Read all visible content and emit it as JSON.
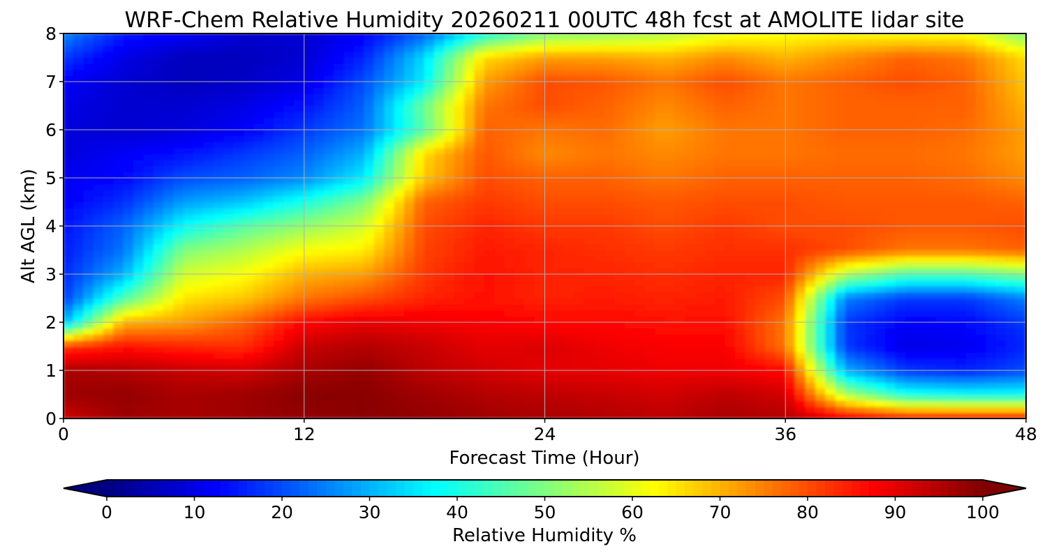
{
  "chart_data": {
    "type": "heatmap",
    "title": "WRF-Chem Relative Humidity 20260211 00UTC 48h fcst at AMOLITE lidar site",
    "xlabel": "Forecast Time (Hour)",
    "ylabel": "Alt AGL (km)",
    "xlim": [
      0,
      48
    ],
    "ylim": [
      0,
      8
    ],
    "xticks": [
      "0",
      "12",
      "24",
      "36",
      "48"
    ],
    "xtick_values": [
      0,
      12,
      24,
      36,
      48
    ],
    "yticks": [
      "0",
      "1",
      "2",
      "3",
      "4",
      "5",
      "6",
      "7",
      "8"
    ],
    "ytick_values": [
      0,
      1,
      2,
      3,
      4,
      5,
      6,
      7,
      8
    ],
    "grid": true,
    "colormap": "jet",
    "colorbar": {
      "label": "Relative Humidity %",
      "orientation": "horizontal",
      "location": "bottom",
      "range": [
        0,
        100
      ],
      "extend": "both",
      "ticks": [
        "0",
        "10",
        "20",
        "30",
        "40",
        "50",
        "60",
        "70",
        "80",
        "90",
        "100"
      ],
      "tick_values": [
        0,
        10,
        20,
        30,
        40,
        50,
        60,
        70,
        80,
        90,
        100
      ]
    },
    "x": [
      0,
      3,
      6,
      9,
      12,
      15,
      18,
      21,
      24,
      27,
      30,
      33,
      36,
      39,
      42,
      45,
      48
    ],
    "y": [
      0,
      0.5,
      1,
      1.5,
      2,
      2.5,
      3,
      3.5,
      4,
      4.5,
      5,
      5.5,
      6,
      6.5,
      7,
      7.5,
      8
    ],
    "z": [
      [
        92,
        97,
        96,
        97,
        98,
        99,
        98,
        97,
        96,
        95,
        94,
        96,
        95,
        90,
        86,
        86,
        86
      ],
      [
        97,
        98,
        96,
        97,
        99,
        99,
        97,
        95,
        94,
        93,
        92,
        94,
        92,
        55,
        40,
        38,
        38
      ],
      [
        96,
        95,
        93,
        92,
        96,
        98,
        94,
        92,
        90,
        90,
        89,
        89,
        87,
        30,
        18,
        16,
        20
      ],
      [
        82,
        86,
        84,
        83,
        93,
        95,
        93,
        90,
        91,
        89,
        88,
        88,
        76,
        18,
        10,
        11,
        16
      ],
      [
        30,
        70,
        72,
        78,
        87,
        90,
        89,
        88,
        87,
        87,
        86,
        86,
        76,
        18,
        12,
        13,
        18
      ],
      [
        18,
        45,
        65,
        68,
        76,
        80,
        84,
        86,
        84,
        85,
        84,
        85,
        80,
        25,
        18,
        18,
        25
      ],
      [
        16,
        30,
        58,
        62,
        70,
        72,
        82,
        86,
        84,
        84,
        83,
        84,
        84,
        55,
        45,
        45,
        50
      ],
      [
        15,
        24,
        50,
        55,
        62,
        64,
        81,
        85,
        84,
        83,
        82,
        83,
        83,
        80,
        76,
        76,
        78
      ],
      [
        14,
        22,
        38,
        46,
        52,
        58,
        80,
        84,
        82,
        82,
        80,
        82,
        80,
        80,
        79,
        79,
        80
      ],
      [
        12,
        17,
        28,
        32,
        40,
        50,
        78,
        82,
        80,
        80,
        79,
        80,
        80,
        79,
        79,
        79,
        78
      ],
      [
        11,
        13,
        20,
        22,
        26,
        36,
        68,
        80,
        78,
        78,
        76,
        78,
        78,
        78,
        78,
        77,
        74
      ],
      [
        9,
        12,
        14,
        18,
        22,
        30,
        66,
        79,
        74,
        76,
        74,
        76,
        76,
        77,
        77,
        76,
        72
      ],
      [
        9,
        8,
        9,
        12,
        18,
        24,
        46,
        78,
        76,
        77,
        72,
        76,
        76,
        78,
        78,
        77,
        72
      ],
      [
        10,
        8,
        8,
        10,
        14,
        22,
        48,
        76,
        80,
        78,
        74,
        78,
        76,
        78,
        78,
        78,
        70
      ],
      [
        12,
        8,
        6,
        7,
        10,
        20,
        36,
        72,
        80,
        79,
        76,
        80,
        76,
        78,
        80,
        78,
        68
      ],
      [
        18,
        10,
        6,
        6,
        8,
        16,
        34,
        66,
        72,
        72,
        70,
        74,
        70,
        74,
        78,
        76,
        66
      ],
      [
        26,
        15,
        12,
        8,
        8,
        12,
        22,
        40,
        50,
        52,
        55,
        60,
        62,
        63,
        62,
        62,
        50
      ]
    ]
  }
}
